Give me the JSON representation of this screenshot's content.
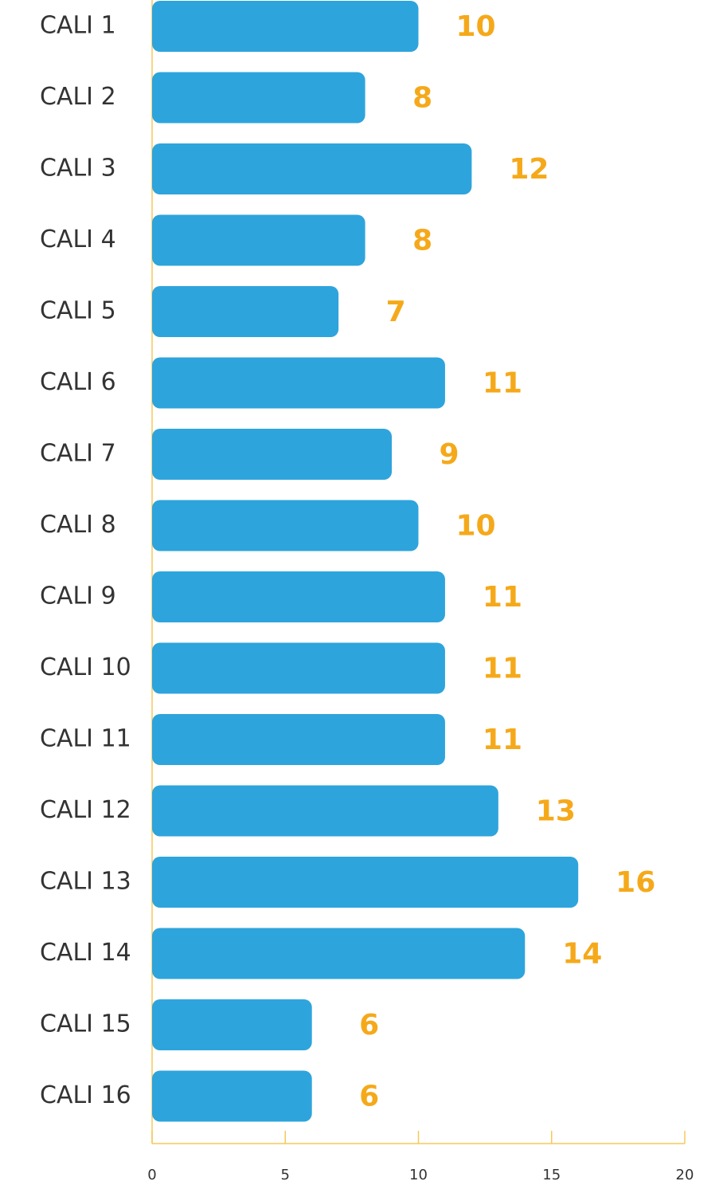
{
  "chart_data": {
    "type": "bar",
    "orientation": "horizontal",
    "categories": [
      "CALI 1",
      "CALI 2",
      "CALI 3",
      "CALI 4",
      "CALI 5",
      "CALI 6",
      "CALI 7",
      "CALI 8",
      "CALI 9",
      "CALI 10",
      "CALI 11",
      "CALI 12",
      "CALI 13",
      "CALI 14",
      "CALI 15",
      "CALI 16"
    ],
    "values": [
      10,
      8,
      12,
      8,
      7,
      11,
      9,
      10,
      11,
      11,
      11,
      13,
      16,
      14,
      6,
      6
    ],
    "color": "#2ea4dc",
    "label_color": "#f5a91a",
    "axis_color": "#f5c85a",
    "xlim": [
      0,
      20
    ],
    "xticks": [
      0,
      5,
      10,
      15,
      20
    ],
    "grid": false
  }
}
